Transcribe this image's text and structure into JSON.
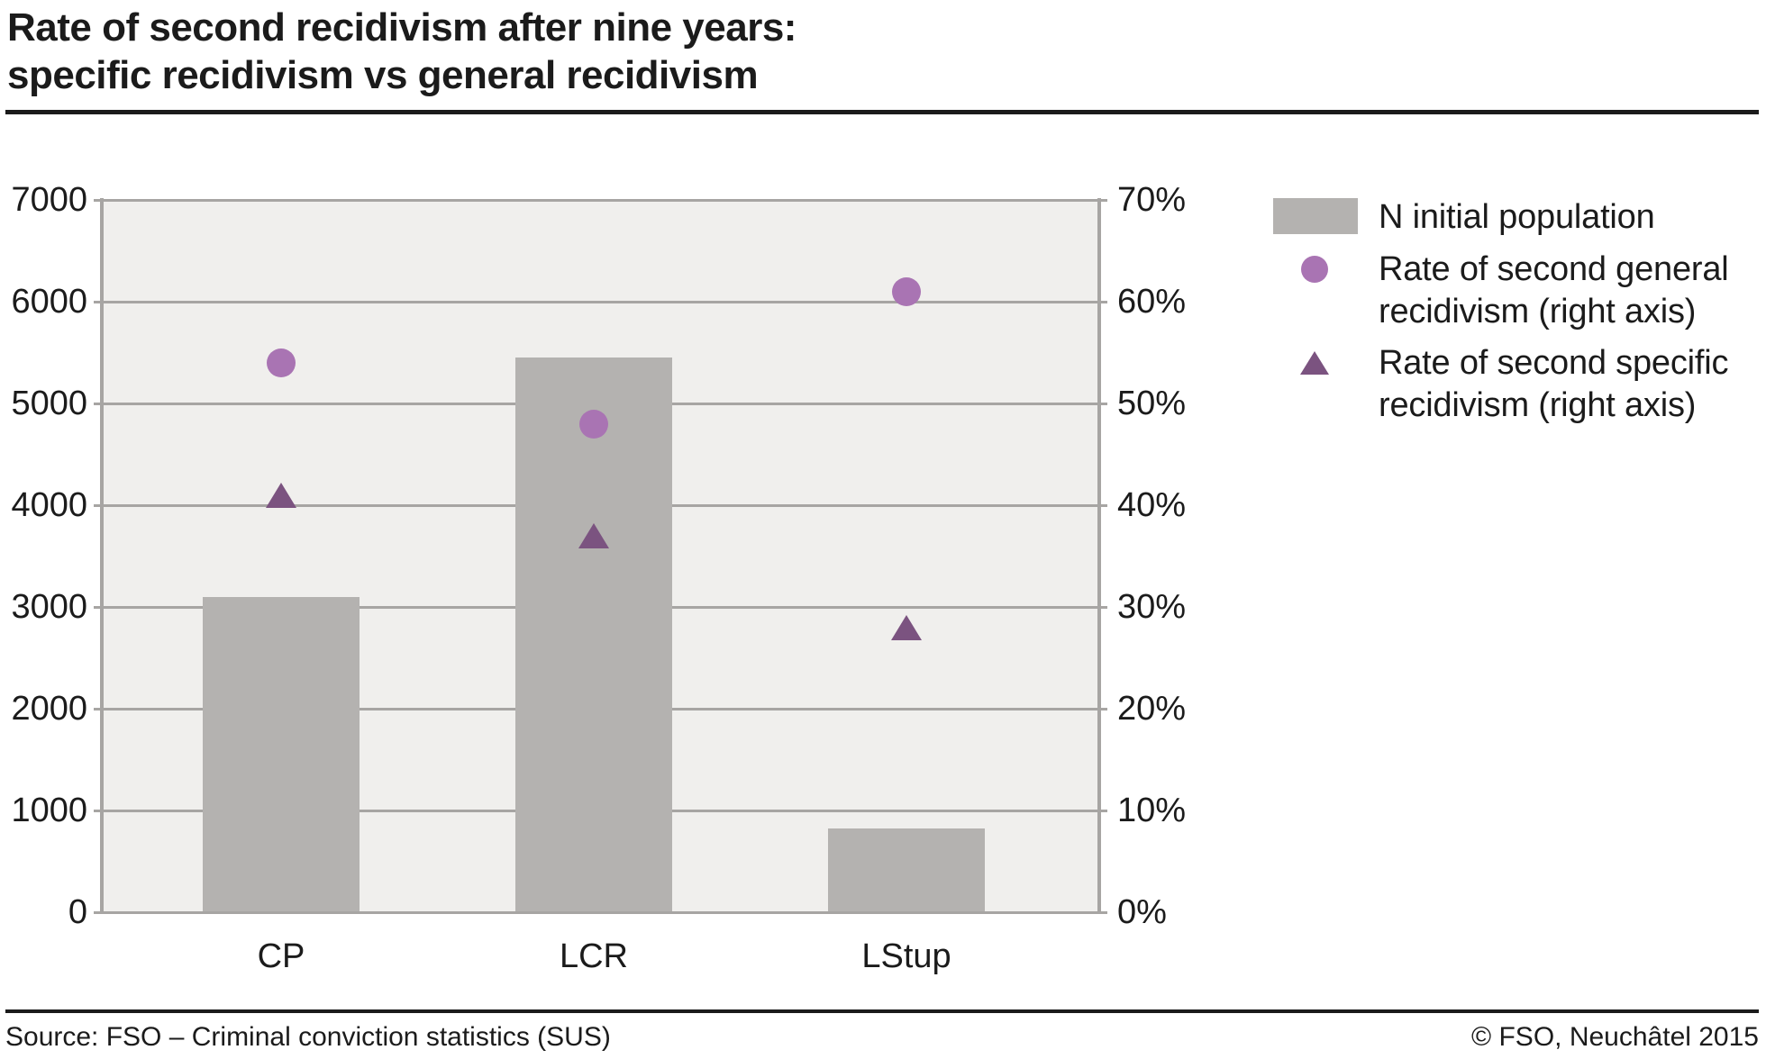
{
  "title": {
    "line1": "Rate of second recidivism after nine years:",
    "line2": "specific recidivism vs general recidivism"
  },
  "legend": {
    "items": [
      {
        "marker": "bar-swatch",
        "label": "N initial population"
      },
      {
        "marker": "circle",
        "label": "Rate of second general recidivism (right axis)"
      },
      {
        "marker": "triangle",
        "label": "Rate of second specific recidivism (right axis)"
      }
    ]
  },
  "footer": {
    "source": "Source: FSO – Criminal conviction statistics (SUS)",
    "copyright": "© FSO, Neuchâtel 2015"
  },
  "colors": {
    "bar": "#b4b2b0",
    "circle": "#a974b3",
    "triangle": "#7b5380",
    "plot_bg": "#f0efed",
    "grid": "#a7a5a3",
    "text": "#1b1b1b"
  },
  "chart_data": {
    "type": "bar",
    "categories": [
      "CP",
      "LCR",
      "LStup"
    ],
    "series": [
      {
        "name": "N initial population",
        "type": "bar",
        "axis": "left",
        "values": [
          3100,
          5450,
          820
        ]
      },
      {
        "name": "Rate of second general recidivism (right axis)",
        "type": "point-circle",
        "axis": "right",
        "values": [
          54,
          48,
          61
        ],
        "unit": "%"
      },
      {
        "name": "Rate of second specific recidivism (right axis)",
        "type": "point-triangle",
        "axis": "right",
        "values": [
          41,
          37,
          28
        ],
        "unit": "%"
      }
    ],
    "left_axis": {
      "min": 0,
      "max": 7000,
      "step": 1000,
      "label_suffix": ""
    },
    "right_axis": {
      "min": 0,
      "max": 70,
      "step": 10,
      "label_suffix": "%"
    },
    "grid": "horizontal",
    "legend_position": "right",
    "plot_background": "light-gray"
  }
}
